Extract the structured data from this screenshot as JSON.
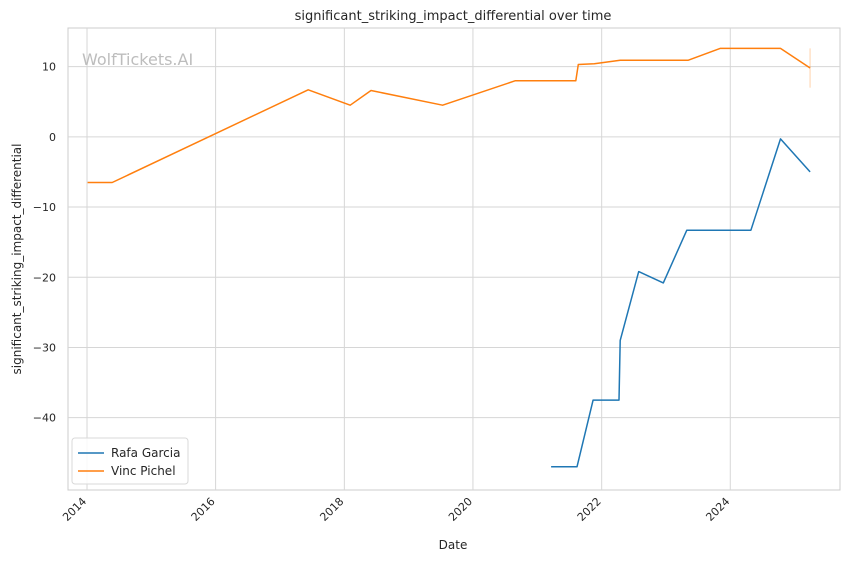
{
  "watermark": "WolfTickets.AI",
  "chart_data": {
    "type": "line",
    "title": "significant_striking_impact_differential over time",
    "xlabel": "Date",
    "ylabel": "significant_striking_impact_differential",
    "x_range": [
      "2013-09-15",
      "2025-09-15"
    ],
    "ylim": [
      -50.3,
      15.5
    ],
    "x_ticks": [
      "2014",
      "2016",
      "2018",
      "2020",
      "2022",
      "2024"
    ],
    "y_ticks": [
      10,
      0,
      -10,
      -20,
      -30,
      -40
    ],
    "y_tick_labels": [
      "10",
      "0",
      "−10",
      "−20",
      "−30",
      "−40"
    ],
    "grid": true,
    "legend_position": "bottom-left",
    "series": [
      {
        "name": "Rafa Garcia",
        "color": "#1f77b4",
        "points": [
          [
            "2021-03-20",
            -47.0
          ],
          [
            "2021-08-14",
            -47.0
          ],
          [
            "2021-11-13",
            -37.5
          ],
          [
            "2022-04-09",
            -37.5
          ],
          [
            "2022-04-16",
            -29.0
          ],
          [
            "2022-07-30",
            -19.2
          ],
          [
            "2022-12-17",
            -20.8
          ],
          [
            "2023-04-29",
            -13.3
          ],
          [
            "2024-04-27",
            -13.3
          ],
          [
            "2024-10-12",
            -0.3
          ],
          [
            "2025-03-29",
            -5.0
          ]
        ]
      },
      {
        "name": "Vinc Pichel",
        "color": "#ff7f0e",
        "points": [
          [
            "2014-01-04",
            -6.5
          ],
          [
            "2014-05-24",
            -6.5
          ],
          [
            "2017-06-10",
            6.7
          ],
          [
            "2018-02-03",
            4.5
          ],
          [
            "2018-06-01",
            6.6
          ],
          [
            "2019-07-13",
            4.5
          ],
          [
            "2020-08-29",
            8.0
          ],
          [
            "2021-08-07",
            8.0
          ],
          [
            "2021-08-21",
            10.3
          ],
          [
            "2021-11-20",
            10.4
          ],
          [
            "2022-04-16",
            10.9
          ],
          [
            "2023-05-06",
            10.9
          ],
          [
            "2023-11-04",
            12.6
          ],
          [
            "2024-10-12",
            12.6
          ],
          [
            "2025-03-29",
            9.8
          ]
        ],
        "error_bar": {
          "x": "2025-03-29",
          "low": 7.0,
          "high": 12.6
        }
      }
    ]
  }
}
